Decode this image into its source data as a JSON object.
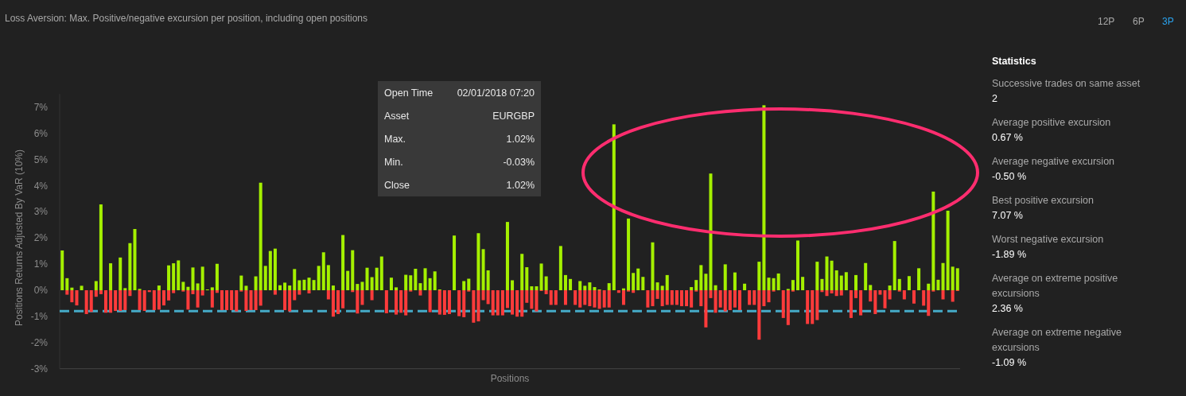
{
  "chart_data": {
    "type": "bar",
    "title": "Loss Aversion: Max. Positive/negative excursion per position, including open positions",
    "xlabel": "Positions",
    "ylabel": "Positions Returns Adjusted By VaR (10%)",
    "categories": [
      null,
      null,
      null,
      null,
      null,
      null,
      null,
      null,
      null,
      null,
      null,
      null,
      null,
      null,
      null,
      null,
      null,
      null,
      null,
      null,
      null,
      null,
      null,
      null,
      null,
      null,
      null,
      null,
      null,
      null,
      null,
      null,
      null,
      null,
      null,
      null,
      null,
      null,
      null,
      null,
      null,
      null,
      null,
      null,
      null,
      null,
      null,
      null,
      null,
      null,
      null,
      null,
      null,
      null,
      null,
      null,
      null,
      null,
      null,
      null,
      null,
      null,
      null,
      null,
      null,
      null,
      null,
      null,
      null,
      null,
      null,
      null,
      null,
      null,
      null,
      null,
      null,
      null,
      null,
      null,
      null,
      null,
      null,
      null,
      null,
      null,
      null,
      null,
      null,
      null,
      null,
      null,
      null,
      null,
      null,
      null,
      null,
      null,
      null,
      null,
      null,
      null,
      null,
      null,
      null,
      null,
      null,
      null,
      null,
      null,
      null,
      null,
      null,
      null,
      null,
      null,
      null,
      null,
      null,
      null,
      null,
      null,
      null,
      null,
      null,
      null,
      null,
      null,
      null,
      null,
      null,
      null,
      null,
      null,
      null,
      null,
      null,
      null,
      null,
      null,
      null,
      null,
      null,
      null,
      null,
      null,
      null,
      null,
      null,
      null,
      null,
      null,
      null,
      null,
      null,
      null,
      null,
      null,
      null,
      null,
      null,
      null,
      null,
      null,
      null,
      null,
      null,
      null,
      null,
      null,
      null,
      null,
      null,
      null,
      null,
      null,
      null,
      null,
      null,
      null,
      null,
      null,
      null,
      null,
      null,
      null
    ],
    "series": [
      {
        "color": "#a4f000",
        "values": [
          1.52,
          0.46,
          0.1,
          0,
          0.17,
          0,
          0,
          0.35,
          3.28,
          0,
          1.03,
          0,
          1.25,
          0.08,
          1.8,
          2.34,
          0.05,
          0,
          0,
          0,
          0.18,
          0,
          0.95,
          1.03,
          1.14,
          0.32,
          0.13,
          0.87,
          0.26,
          0.9,
          0.03,
          0.11,
          1.01,
          0,
          0,
          0,
          0,
          0.56,
          0.17,
          0,
          0.53,
          4.11,
          0.93,
          1.5,
          1.59,
          0.19,
          0.29,
          0.18,
          0.81,
          0.38,
          0.4,
          0.48,
          0.39,
          0.93,
          1.45,
          0.96,
          0.18,
          0,
          2.11,
          0.74,
          1.53,
          0.24,
          0.32,
          0.86,
          0.5,
          0.86,
          1.29,
          0,
          0.48,
          0.11,
          0,
          0.59,
          0.57,
          0.82,
          0.27,
          0.84,
          0.46,
          0.72,
          0.03,
          0,
          0,
          2.09,
          0,
          0.35,
          0.44,
          0,
          2.18,
          1.57,
          0.76,
          0,
          0,
          0,
          2.61,
          0.38,
          0,
          1.39,
          0.88,
          0.15,
          0.15,
          1.02,
          0.53,
          0,
          0,
          1.69,
          0.58,
          0.43,
          0,
          0.35,
          0.17,
          0.3,
          0.12,
          0.03,
          0,
          0.27,
          6.34,
          0,
          0.07,
          2.74,
          0.66,
          0.83,
          0.51,
          0,
          1.83,
          0.3,
          0.17,
          0.58,
          0,
          0,
          0,
          0,
          0.12,
          0.39,
          0.96,
          0.63,
          4.46,
          0.19,
          0,
          0.99,
          0,
          0.68,
          0,
          0.25,
          0,
          0,
          1.09,
          7.07,
          0.48,
          0.46,
          0.64,
          0,
          0.05,
          0.39,
          1.9,
          0.51,
          0,
          0,
          1.09,
          0.43,
          1.29,
          1.13,
          0.76,
          0.56,
          0.69,
          0,
          0.58,
          0,
          1.04,
          0.2,
          0,
          0,
          0,
          0.18,
          1.88,
          0.43,
          0,
          0.54,
          0,
          0.84,
          0,
          0.25,
          3.77,
          0.4,
          1.04,
          3.04,
          0.9,
          0.84
        ]
      },
      {
        "color": "#ff3b3b",
        "values": [
          0,
          -0.17,
          -0.46,
          -0.58,
          0,
          -0.91,
          -0.83,
          -0.25,
          -0.15,
          -0.86,
          -0.86,
          -0.79,
          -0.79,
          -0.76,
          -0.22,
          0,
          -0.76,
          -0.79,
          -0.07,
          -0.76,
          -0.74,
          -0.58,
          -0.39,
          -0.11,
          0,
          -0.05,
          -0.74,
          -0.15,
          -0.66,
          -0.2,
          0,
          -0.66,
          -0.1,
          -0.76,
          -0.76,
          -0.76,
          -0.81,
          -0.05,
          -0.79,
          -0.76,
          -0.76,
          -0.59,
          0,
          0,
          -0.17,
          0,
          -0.76,
          -0.81,
          -0.38,
          -0.17,
          0,
          -0.12,
          0,
          0,
          0,
          -0.35,
          -1.01,
          -0.91,
          -0.69,
          0,
          -0.07,
          -0.89,
          -0.56,
          0,
          -0.38,
          0,
          0,
          -0.88,
          0,
          -0.93,
          -0.86,
          -0.96,
          -0.05,
          0,
          -0.2,
          0,
          -0.84,
          0,
          -0.93,
          -0.94,
          -0.91,
          0,
          -0.99,
          -1.03,
          -0.05,
          -1.24,
          -1.19,
          -0.38,
          -0.53,
          -0.96,
          -0.96,
          -0.96,
          -0.68,
          -0.93,
          -1.01,
          -1.01,
          -0.48,
          -0.71,
          -0.81,
          -0.03,
          -0.15,
          -0.56,
          -0.56,
          0,
          -0.56,
          0,
          -0.56,
          -0.66,
          -0.56,
          -0.61,
          -0.66,
          -0.71,
          -0.66,
          -0.66,
          0,
          -0.1,
          -0.56,
          -0.05,
          -0.1,
          0,
          0,
          -0.66,
          -0.61,
          -0.33,
          -0.61,
          -0.56,
          -0.56,
          -0.56,
          -0.61,
          -0.61,
          -0.66,
          -0.05,
          -0.61,
          -1.42,
          -0.3,
          -0.86,
          -0.66,
          -0.81,
          -0.76,
          -0.66,
          -0.76,
          0,
          -0.56,
          -0.56,
          -1.89,
          -0.61,
          -0.46,
          -0.05,
          0,
          -1.06,
          -1.33,
          -0.05,
          0,
          0,
          -1.29,
          -1.29,
          -1.14,
          -0.07,
          -0.22,
          -0.12,
          -0.22,
          -0.2,
          0,
          -1.06,
          -0.3,
          -0.96,
          0,
          -0.43,
          -0.91,
          -0.17,
          -0.69,
          -0.35,
          0,
          -0.05,
          -0.35,
          0,
          -0.51,
          0,
          -0.59,
          -0.98,
          -0.05,
          0,
          -0.35,
          0,
          -0.44,
          -0.03
        ]
      }
    ],
    "ylim": [
      -3,
      7.5
    ],
    "yticks": [
      {
        "value": -3,
        "label": "-3%"
      },
      {
        "value": -2,
        "label": "-2%"
      },
      {
        "value": -1,
        "label": "-1%"
      },
      {
        "value": 0,
        "label": "0%"
      },
      {
        "value": 1,
        "label": "1%"
      },
      {
        "value": 2,
        "label": "2%"
      },
      {
        "value": 3,
        "label": "3%"
      },
      {
        "value": 4,
        "label": "4%"
      },
      {
        "value": 5,
        "label": "5%"
      },
      {
        "value": 6,
        "label": "6%"
      },
      {
        "value": 7,
        "label": "7%"
      }
    ],
    "ref_lines": [
      {
        "axis": "y",
        "value": -0.8,
        "color": "#45abc8",
        "line_style": "dashed"
      }
    ],
    "annotations": [
      "12P",
      "6P",
      "3P",
      "Open Time",
      "02/01/2018 07:20",
      "Asset",
      "EURGBP",
      "Max.",
      "1.02%",
      "Min.",
      "-0.03%",
      "Close",
      "1.02%",
      "Statistics",
      "Successive trades on same asset",
      "2",
      "Average positive excursion",
      "0.67 %",
      "Average negative excursion",
      "-0.50 %",
      "Best positive excursion",
      "7.07 %",
      "Worst negative excursion",
      "-1.89 %",
      "Average on extreme positive excursions",
      "2.36 %",
      "Average on extreme negative excursions",
      "-1.09 %"
    ]
  }
}
